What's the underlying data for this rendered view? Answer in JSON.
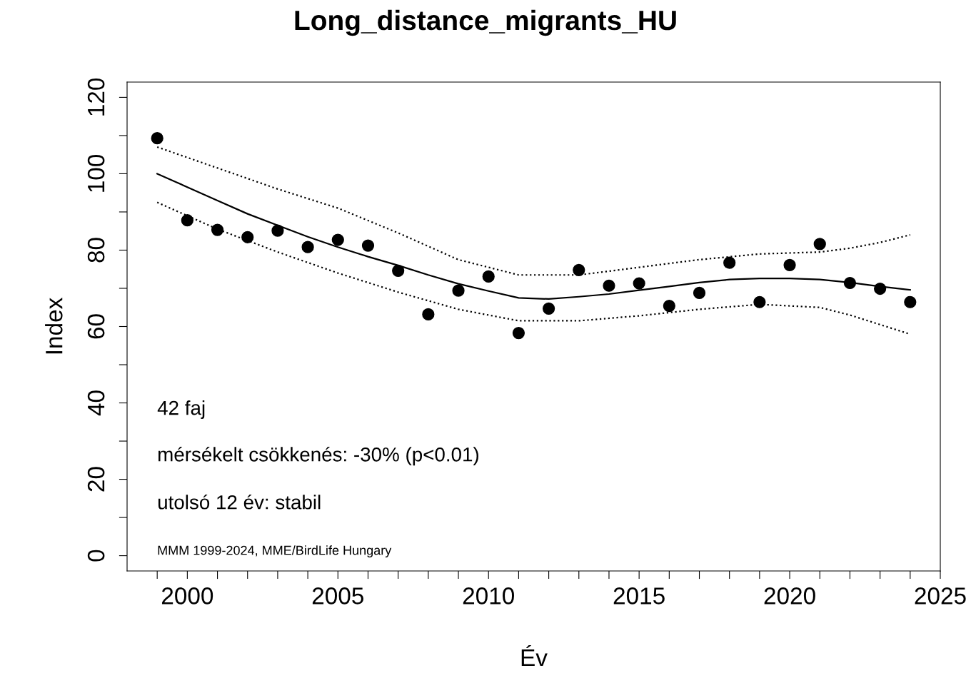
{
  "chart_data": {
    "type": "scatter",
    "title": "Long_distance_migrants_HU",
    "xlabel": "Év",
    "ylabel": "Index",
    "xlim": [
      1998,
      2025
    ],
    "ylim": [
      -4,
      124
    ],
    "xticks": [
      {
        "value": 1999,
        "label": null
      },
      2000,
      {
        "value": 2001,
        "label": null
      },
      {
        "value": 2002,
        "label": null
      },
      {
        "value": 2003,
        "label": null
      },
      {
        "value": 2004,
        "label": null
      },
      2005,
      {
        "value": 2006,
        "label": null
      },
      {
        "value": 2007,
        "label": null
      },
      {
        "value": 2008,
        "label": null
      },
      {
        "value": 2009,
        "label": null
      },
      2010,
      {
        "value": 2011,
        "label": null
      },
      {
        "value": 2012,
        "label": null
      },
      {
        "value": 2013,
        "label": null
      },
      {
        "value": 2014,
        "label": null
      },
      2015,
      {
        "value": 2016,
        "label": null
      },
      {
        "value": 2017,
        "label": null
      },
      {
        "value": 2018,
        "label": null
      },
      {
        "value": 2019,
        "label": null
      },
      2020,
      {
        "value": 2021,
        "label": null
      },
      {
        "value": 2022,
        "label": null
      },
      {
        "value": 2023,
        "label": null
      },
      {
        "value": 2024,
        "label": null
      },
      2025
    ],
    "yticks": [
      0,
      {
        "value": 10,
        "label": null
      },
      20,
      {
        "value": 30,
        "label": null
      },
      40,
      {
        "value": 50,
        "label": null
      },
      60,
      {
        "value": 70,
        "label": null
      },
      80,
      {
        "value": 90,
        "label": null
      },
      100,
      {
        "value": 110,
        "label": null
      },
      120
    ],
    "grid": false,
    "legend": false,
    "series": [
      {
        "color": "#000000",
        "marker": "circle",
        "x": [
          1999,
          2000,
          2001,
          2002,
          2003,
          2004,
          2005,
          2006,
          2007,
          2008,
          2009,
          2010,
          2011,
          2012,
          2013,
          2014,
          2015,
          2016,
          2017,
          2018,
          2019,
          2020,
          2021,
          2022,
          2023,
          2024
        ],
        "values": [
          109.3,
          87.8,
          85.3,
          83.4,
          85.1,
          80.8,
          82.7,
          81.2,
          74.6,
          63.2,
          69.4,
          73.1,
          58.3,
          64.7,
          74.8,
          70.7,
          71.3,
          65.4,
          68.8,
          76.7,
          66.4,
          76.1,
          81.6,
          71.4,
          69.9,
          66.4
        ]
      },
      {
        "type": "line",
        "color": "#000000",
        "line_style": "solid",
        "x": [
          1999,
          2000,
          2001,
          2002,
          2003,
          2004,
          2005,
          2006,
          2007,
          2008,
          2009,
          2010,
          2011,
          2012,
          2013,
          2014,
          2015,
          2016,
          2017,
          2018,
          2019,
          2020,
          2021,
          2022,
          2023,
          2024
        ],
        "values": [
          100,
          96.5,
          93,
          89.5,
          86.5,
          83.5,
          80.8,
          78.3,
          76,
          73.5,
          71.2,
          69.3,
          67.5,
          67.2,
          67.8,
          68.5,
          69.5,
          70.5,
          71.5,
          72.3,
          72.6,
          72.6,
          72.3,
          71.5,
          70.5,
          69.6
        ]
      },
      {
        "type": "line",
        "color": "#000000",
        "line_style": "dotted",
        "x": [
          1999,
          2001,
          2003,
          2005,
          2007,
          2009,
          2011,
          2013,
          2015,
          2017,
          2019,
          2021,
          2022,
          2023,
          2024
        ],
        "values": [
          107,
          101.5,
          96,
          91,
          84.5,
          77.5,
          73.5,
          73.5,
          75.5,
          77.5,
          79,
          79.5,
          80.5,
          82,
          84
        ]
      },
      {
        "type": "line",
        "color": "#000000",
        "line_style": "dotted",
        "x": [
          1999,
          2001,
          2003,
          2005,
          2007,
          2009,
          2011,
          2013,
          2015,
          2017,
          2019,
          2021,
          2022,
          2023,
          2024
        ],
        "values": [
          92.5,
          85.5,
          79.5,
          74,
          69,
          64.5,
          61.5,
          61.5,
          62.8,
          64.5,
          65.8,
          65,
          63,
          60.5,
          58
        ]
      }
    ],
    "annotations": [
      "42 faj",
      "mérsékelt csökkenés: -30% (p<0.01)",
      "utolsó 12 év: stabil",
      "MMM 1999-2024, MME/BirdLife Hungary"
    ]
  }
}
